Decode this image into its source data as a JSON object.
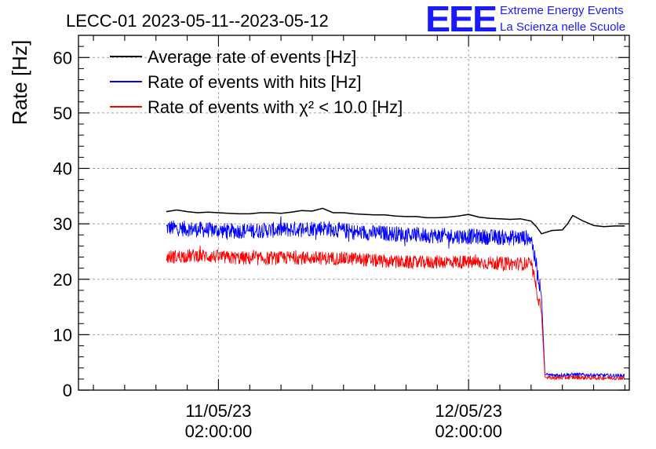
{
  "chart_data": {
    "type": "line",
    "title": "LECC-01 2023-05-11--2023-05-12",
    "ylabel": "Rate [Hz]",
    "xlabel": "",
    "ylim": [
      0,
      64
    ],
    "y_ticks": [
      0,
      10,
      20,
      30,
      40,
      50,
      60
    ],
    "x_tick_labels": [
      {
        "date": "11/05/23",
        "time": "02:00:00",
        "x": "2023-05-11 02:00"
      },
      {
        "date": "12/05/23",
        "time": "02:00:00",
        "x": "2023-05-12 02:00"
      }
    ],
    "grid": true,
    "legend_position": "top-left",
    "logo": {
      "letters": "EEE",
      "line1": "Extreme Energy Events",
      "line2": "La Scienza nelle Scuole",
      "color": "#1a1aff"
    },
    "series": [
      {
        "name": "Average rate of events [Hz]",
        "color": "#000000",
        "noisy": false,
        "x": [
          "2023-05-10 21:00",
          "2023-05-10 22:00",
          "2023-05-10 23:00",
          "2023-05-11 00:00",
          "2023-05-11 01:00",
          "2023-05-11 02:00",
          "2023-05-11 03:00",
          "2023-05-11 04:00",
          "2023-05-11 05:00",
          "2023-05-11 06:00",
          "2023-05-11 07:00",
          "2023-05-11 08:00",
          "2023-05-11 09:00",
          "2023-05-11 10:00",
          "2023-05-11 11:00",
          "2023-05-11 12:00",
          "2023-05-11 13:00",
          "2023-05-11 14:00",
          "2023-05-11 15:00",
          "2023-05-11 16:00",
          "2023-05-11 17:00",
          "2023-05-11 18:00",
          "2023-05-11 19:00",
          "2023-05-11 20:00",
          "2023-05-11 21:00",
          "2023-05-11 22:00",
          "2023-05-11 23:00",
          "2023-05-12 00:00",
          "2023-05-12 01:00",
          "2023-05-12 02:00",
          "2023-05-12 03:00",
          "2023-05-12 04:00",
          "2023-05-12 05:00",
          "2023-05-12 06:00",
          "2023-05-12 07:00",
          "2023-05-12 08:00",
          "2023-05-12 08:30",
          "2023-05-12 09:00",
          "2023-05-12 10:00",
          "2023-05-12 11:00",
          "2023-05-12 11:30",
          "2023-05-12 12:00",
          "2023-05-12 13:00",
          "2023-05-12 14:00",
          "2023-05-12 15:00",
          "2023-05-12 16:00",
          "2023-05-12 17:00"
        ],
        "values": [
          32.2,
          32.5,
          32.2,
          32.0,
          32.1,
          32.0,
          31.9,
          31.8,
          31.8,
          32.0,
          32.0,
          31.9,
          32.1,
          32.4,
          32.3,
          32.8,
          32.0,
          32.0,
          31.8,
          31.7,
          31.6,
          31.6,
          31.4,
          31.3,
          31.3,
          31.1,
          31.1,
          31.2,
          31.4,
          31.7,
          31.2,
          31.0,
          30.9,
          30.8,
          30.9,
          30.5,
          29.5,
          28.2,
          28.8,
          28.9,
          30.0,
          31.5,
          30.5,
          29.7,
          29.5,
          29.6,
          29.6
        ]
      },
      {
        "name": "Rate of events with hits [Hz]",
        "color": "#0000ff",
        "noisy": true,
        "x": [
          "2023-05-10 21:00",
          "2023-05-11 00:00",
          "2023-05-11 03:00",
          "2023-05-11 06:00",
          "2023-05-11 09:00",
          "2023-05-11 12:00",
          "2023-05-11 15:00",
          "2023-05-11 18:00",
          "2023-05-11 21:00",
          "2023-05-12 00:00",
          "2023-05-12 03:00",
          "2023-05-12 06:00",
          "2023-05-12 08:00",
          "2023-05-12 09:00",
          "2023-05-12 09:20",
          "2023-05-12 10:00",
          "2023-05-12 12:00",
          "2023-05-12 14:00",
          "2023-05-12 16:00",
          "2023-05-12 17:00"
        ],
        "values": [
          29.3,
          29.0,
          28.7,
          28.8,
          29.0,
          29.3,
          28.5,
          28.3,
          28.0,
          27.8,
          27.7,
          27.5,
          27.5,
          17.0,
          2.8,
          2.7,
          2.8,
          2.7,
          2.6,
          2.6
        ]
      },
      {
        "name": "Rate of events with χ² < 10.0 [Hz]",
        "color": "#ff0000",
        "noisy": true,
        "x": [
          "2023-05-10 21:00",
          "2023-05-11 00:00",
          "2023-05-11 03:00",
          "2023-05-11 06:00",
          "2023-05-11 09:00",
          "2023-05-11 12:00",
          "2023-05-11 15:00",
          "2023-05-11 18:00",
          "2023-05-11 21:00",
          "2023-05-12 00:00",
          "2023-05-12 03:00",
          "2023-05-12 06:00",
          "2023-05-12 08:00",
          "2023-05-12 09:00",
          "2023-05-12 09:20",
          "2023-05-12 10:00",
          "2023-05-12 12:00",
          "2023-05-12 14:00",
          "2023-05-12 16:00",
          "2023-05-12 17:00"
        ],
        "values": [
          24.0,
          24.3,
          23.9,
          23.7,
          23.9,
          23.8,
          23.7,
          23.2,
          23.0,
          23.2,
          23.0,
          22.8,
          22.8,
          14.0,
          2.3,
          2.2,
          2.3,
          2.2,
          2.2,
          2.2
        ]
      }
    ]
  }
}
